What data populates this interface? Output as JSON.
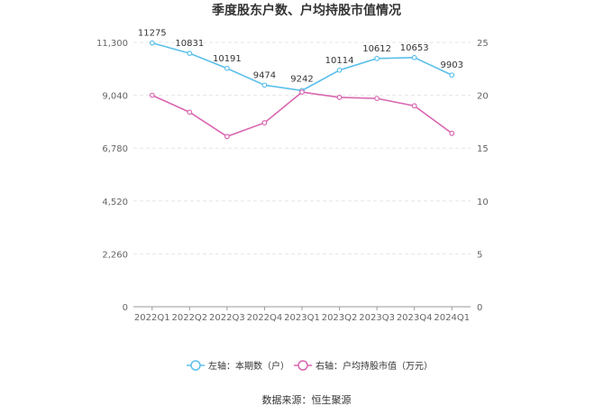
{
  "chart_data": {
    "type": "line",
    "title": "季度股东户数、户均持股市值情况",
    "categories": [
      "2022Q1",
      "2022Q2",
      "2022Q3",
      "2022Q4",
      "2023Q1",
      "2023Q2",
      "2023Q3",
      "2023Q4",
      "2024Q1"
    ],
    "left_axis": {
      "ticks": [
        "0",
        "2,260",
        "4,520",
        "6,780",
        "9,040",
        "11,300"
      ],
      "ylim": [
        0,
        11300
      ]
    },
    "right_axis": {
      "ticks": [
        "0",
        "5",
        "10",
        "15",
        "20",
        "25"
      ],
      "ylim": [
        0,
        25
      ]
    },
    "series": [
      {
        "name": "左轴：本期数（户）",
        "axis": "left",
        "color": "#5bc0eb",
        "values": [
          11275,
          10831,
          10191,
          9474,
          9242,
          10114,
          10612,
          10653,
          9903
        ],
        "labels": [
          "11275",
          "10831",
          "10191",
          "9474",
          "9242",
          "10114",
          "10612",
          "10653",
          "9903"
        ]
      },
      {
        "name": "右轴：户均持股市值（万元）",
        "axis": "right",
        "color": "#d966b0",
        "values": [
          20.0,
          18.4,
          16.1,
          17.4,
          20.3,
          19.8,
          19.7,
          19.0,
          16.4
        ]
      }
    ],
    "grid": true,
    "legend_position": "bottom",
    "source": "数据来源：恒生聚源"
  }
}
